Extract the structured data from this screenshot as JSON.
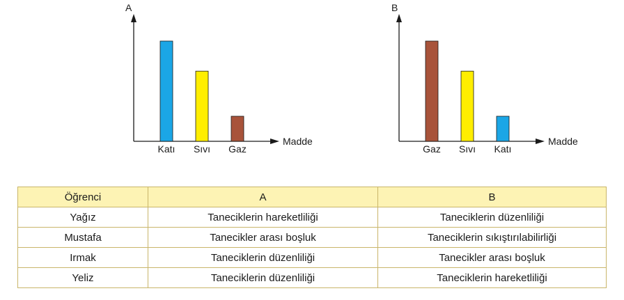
{
  "chart_data": [
    {
      "type": "bar",
      "title": "",
      "xlabel": "Madde",
      "ylabel": "A",
      "categories": [
        "Katı",
        "Sıvı",
        "Gaz"
      ],
      "values": [
        10,
        7,
        2.5
      ],
      "ylim": [
        0,
        12.5
      ],
      "colors": [
        "#1ba6e6",
        "#ffee00",
        "#a8533a"
      ],
      "grid": false
    },
    {
      "type": "bar",
      "title": "",
      "xlabel": "Madde",
      "ylabel": "B",
      "categories": [
        "Gaz",
        "Sıvı",
        "Katı"
      ],
      "values": [
        10,
        7,
        2.5
      ],
      "ylim": [
        0,
        12.5
      ],
      "colors": [
        "#a8533a",
        "#ffee00",
        "#1ba6e6"
      ],
      "grid": false
    }
  ],
  "table": {
    "headers": [
      "Öğrenci",
      "A",
      "B"
    ],
    "rows": [
      [
        "Yağız",
        "Taneciklerin hareketliliği",
        "Taneciklerin düzenliliği"
      ],
      [
        "Mustafa",
        "Tanecikler arası boşluk",
        "Taneciklerin sıkıştırılabilirliği"
      ],
      [
        "Irmak",
        "Taneciklerin düzenliliği",
        "Tanecikler arası boşluk"
      ],
      [
        "Yeliz",
        "Taneciklerin düzenliliği",
        "Taneciklerin hareketliliği"
      ]
    ],
    "header_color": "#fdf3b4",
    "border_color": "#c9b56a"
  }
}
